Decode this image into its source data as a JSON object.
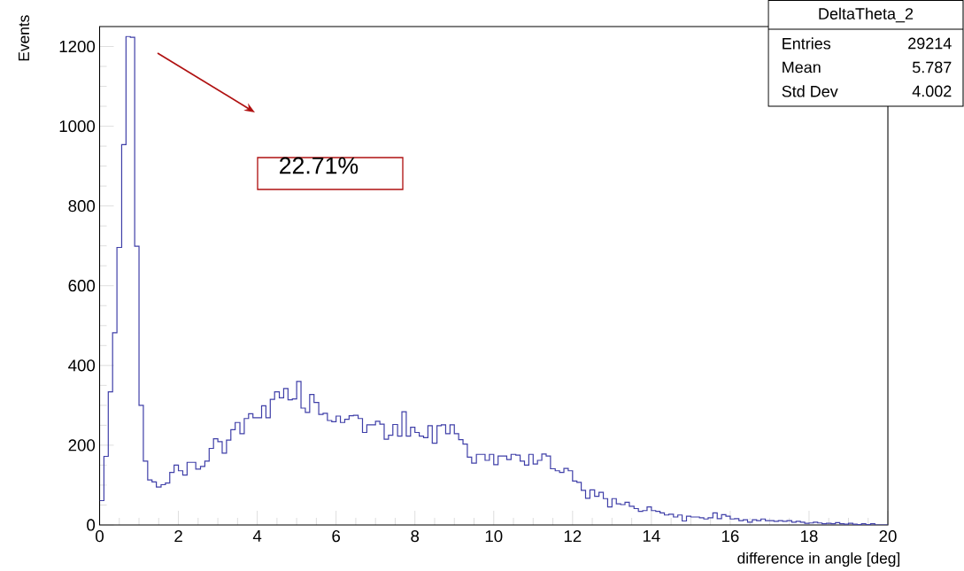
{
  "chart_data": {
    "type": "histogram",
    "xlabel": "difference in angle [deg]",
    "ylabel": "Events",
    "bins": [
      0,
      0.11,
      0.22,
      0.33,
      0.44,
      0.56,
      0.67,
      0.78,
      0.89,
      1,
      1.11,
      1.22,
      1.33,
      1.44,
      1.56,
      1.67,
      1.78,
      1.89,
      2,
      2.11,
      2.22,
      2.33,
      2.44,
      2.56,
      2.67,
      2.78,
      2.89,
      3,
      3.11,
      3.22,
      3.33,
      3.44,
      3.56,
      3.67,
      3.78,
      3.89,
      4,
      4.11,
      4.22,
      4.33,
      4.44,
      4.56,
      4.67,
      4.78,
      4.89,
      5,
      5.11,
      5.22,
      5.33,
      5.44,
      5.56,
      5.67,
      5.78,
      5.89,
      6,
      6.11,
      6.22,
      6.33,
      6.44,
      6.56,
      6.67,
      6.78,
      6.89,
      7,
      7.11,
      7.22,
      7.33,
      7.44,
      7.56,
      7.67,
      7.78,
      7.89,
      8,
      8.11,
      8.22,
      8.33,
      8.44,
      8.56,
      8.67,
      8.78,
      8.89,
      9,
      9.11,
      9.22,
      9.33,
      9.44,
      9.56,
      9.67,
      9.78,
      9.89,
      10,
      10.11,
      10.22,
      10.33,
      10.44,
      10.56,
      10.67,
      10.78,
      10.89,
      11,
      11.11,
      11.22,
      11.33,
      11.44,
      11.56,
      11.67,
      11.78,
      11.89,
      12,
      12.11,
      12.22,
      12.33,
      12.44,
      12.56,
      12.67,
      12.78,
      12.89,
      13,
      13.11,
      13.22,
      13.33,
      13.44,
      13.56,
      13.67,
      13.78,
      13.89,
      14,
      14.11,
      14.22,
      14.33,
      14.44,
      14.56,
      14.67,
      14.78,
      14.89,
      15,
      15.11,
      15.22,
      15.33,
      15.44,
      15.56,
      15.67,
      15.78,
      15.89,
      16,
      16.11,
      16.22,
      16.33,
      16.44,
      16.56,
      16.67,
      16.78,
      16.89,
      17,
      17.11,
      17.22,
      17.33,
      17.44,
      17.56,
      17.67,
      17.78,
      17.89,
      18,
      18.11,
      18.22,
      18.33,
      18.44,
      18.56,
      18.67,
      18.78,
      18.89,
      19,
      19.11,
      19.22,
      19.33,
      19.44,
      19.56,
      19.67,
      19.78,
      19.89,
      20
    ],
    "values": [
      61,
      172,
      334,
      482,
      696,
      954,
      1225,
      1223,
      699,
      300,
      160,
      113,
      108,
      95,
      101,
      105,
      132,
      150,
      136,
      125,
      157,
      157,
      140,
      147,
      160,
      192,
      216,
      209,
      180,
      213,
      239,
      257,
      229,
      267,
      279,
      269,
      269,
      299,
      269,
      315,
      334,
      319,
      342,
      314,
      316,
      360,
      293,
      282,
      327,
      307,
      277,
      280,
      262,
      259,
      273,
      257,
      265,
      274,
      275,
      267,
      232,
      251,
      251,
      260,
      253,
      215,
      225,
      252,
      223,
      284,
      223,
      245,
      232,
      223,
      219,
      249,
      205,
      249,
      251,
      229,
      251,
      229,
      214,
      203,
      170,
      155,
      177,
      177,
      162,
      177,
      151,
      173,
      173,
      164,
      177,
      175,
      160,
      150,
      177,
      153,
      162,
      178,
      173,
      141,
      136,
      132,
      142,
      136,
      110,
      107,
      87,
      67,
      88,
      72,
      82,
      66,
      45,
      66,
      53,
      51,
      57,
      47,
      41,
      34,
      36,
      45,
      36,
      34,
      30,
      25,
      27,
      20,
      25,
      10,
      22,
      20,
      20,
      18,
      15,
      18,
      30,
      16,
      26,
      22,
      15,
      16,
      11,
      13,
      7,
      13,
      11,
      15,
      11,
      11,
      9,
      11,
      9,
      11,
      7,
      9,
      7,
      4,
      5,
      7,
      5,
      3,
      4,
      3,
      6,
      3,
      2,
      4,
      2,
      1,
      3,
      1,
      3,
      0,
      0,
      0
    ],
    "color": "#3f3fa8",
    "xlim": [
      0,
      20
    ],
    "ylim": [
      0,
      1250
    ],
    "xticks": [
      0,
      2,
      4,
      6,
      8,
      10,
      12,
      14,
      16,
      18,
      20
    ],
    "yticks": [
      0,
      200,
      400,
      600,
      800,
      1000,
      1200
    ],
    "annotations": [
      "22.71%",
      "DeltaTheta_2",
      "Entries",
      "29214",
      "Mean",
      "5.787",
      "Std Dev",
      "4.002"
    ]
  }
}
